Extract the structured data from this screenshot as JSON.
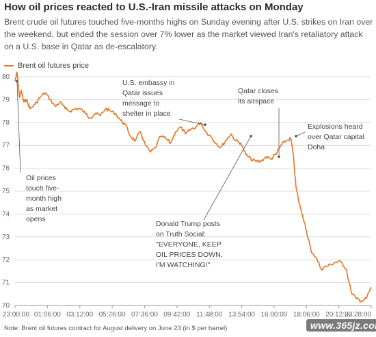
{
  "header": {
    "title": "How oil prices reacted to U.S.-Iran missile attacks on Monday",
    "subtitle": "Brent crude oil futures touched five-months highs on Sunday evening after U.S. strikes on Iran over the weekend, but ended the session over 7% lower as the market viewed Iran's retaliatory attack on a U.S. base in Qatar as de-escalatory."
  },
  "footer": {
    "note": "Note: Brent oil futures contract for August delivery on June 23 (in $ per barrel)",
    "watermark": "www.365jz.com"
  },
  "colors": {
    "line": "#e8731f",
    "grid": "#dcdcdc",
    "text": "#444444"
  },
  "chart_data": {
    "type": "line",
    "title": "How oil prices reacted to U.S.-Iran missile attacks on Monday",
    "xlabel": "",
    "ylabel": "",
    "ylim": [
      70,
      80
    ],
    "yticks": [
      70,
      71,
      72,
      73,
      74,
      75,
      76,
      77,
      78,
      79,
      80
    ],
    "xticks": [
      "23:00:00",
      "01:06:00",
      "03:12:00",
      "05:26:00",
      "07:36:00",
      "09:42:00",
      "11:48:00",
      "13:54:00",
      "16:00:00",
      "18:06:00",
      "20:12:00",
      "22:28:00"
    ],
    "grid": true,
    "legend": "top-left",
    "series": [
      {
        "name": "Brent oil futures price",
        "x": [
          "23:00",
          "23:08",
          "23:12",
          "23:18",
          "23:25",
          "23:35",
          "23:45",
          "00:00",
          "00:20",
          "00:40",
          "01:00",
          "01:20",
          "01:40",
          "02:00",
          "02:20",
          "02:40",
          "03:00",
          "03:20",
          "03:40",
          "04:00",
          "04:20",
          "04:40",
          "05:00",
          "05:20",
          "05:40",
          "06:00",
          "06:20",
          "06:40",
          "07:00",
          "07:20",
          "07:40",
          "08:00",
          "08:20",
          "08:40",
          "09:00",
          "09:20",
          "09:40",
          "10:00",
          "10:20",
          "10:40",
          "11:00",
          "11:20",
          "11:40",
          "12:00",
          "12:20",
          "12:40",
          "13:00",
          "13:20",
          "13:40",
          "14:00",
          "14:20",
          "14:40",
          "15:00",
          "15:20",
          "15:40",
          "16:00",
          "16:20",
          "16:40",
          "17:00",
          "17:20",
          "17:30",
          "17:40",
          "17:50",
          "18:00",
          "18:10",
          "18:20",
          "18:30",
          "18:40",
          "19:00",
          "19:20",
          "19:40",
          "20:00",
          "20:20",
          "20:40",
          "21:00",
          "21:20",
          "21:40",
          "22:00",
          "22:20",
          "22:40"
        ],
        "values": [
          79.8,
          80.2,
          79.7,
          79.1,
          79.4,
          78.9,
          79.0,
          78.6,
          78.8,
          79.1,
          79.3,
          79.0,
          78.7,
          78.9,
          78.6,
          78.5,
          78.6,
          78.6,
          78.4,
          78.2,
          78.4,
          78.3,
          78.6,
          78.5,
          78.4,
          78.1,
          77.9,
          77.4,
          77.2,
          77.6,
          77.0,
          76.7,
          76.9,
          77.4,
          77.3,
          77.1,
          77.6,
          77.8,
          77.5,
          77.7,
          77.8,
          78.0,
          77.6,
          77.4,
          77.1,
          76.9,
          77.2,
          77.5,
          77.2,
          77.1,
          76.6,
          76.4,
          76.3,
          76.3,
          76.5,
          76.4,
          76.6,
          77.0,
          77.2,
          77.3,
          76.5,
          75.2,
          74.6,
          74.2,
          73.8,
          73.3,
          72.9,
          72.4,
          72.1,
          71.6,
          71.7,
          71.8,
          71.9,
          71.9,
          71.6,
          70.6,
          70.3,
          70.2,
          70.3,
          70.8
        ]
      }
    ],
    "annotations": [
      {
        "at": "23:08",
        "lines": [
          "Oil prices",
          "touch five-",
          "month high",
          "as market",
          "opens"
        ]
      },
      {
        "at": "12:00",
        "lines": [
          "U.S. embassy in",
          "Qatar issues",
          "message to",
          "shelter in place"
        ]
      },
      {
        "at": "13:54",
        "lines": [
          "Donald Trump posts",
          "on Truth Social:",
          "\"EVERYONE, KEEP",
          "OIL PRICES DOWN,",
          "I'M WATCHING!\""
        ]
      },
      {
        "at": "16:20",
        "lines": [
          "Qatar closes",
          "its airspace"
        ]
      },
      {
        "at": "17:20",
        "lines": [
          "Explosions heard",
          "over Qatar capital",
          "Doha"
        ]
      }
    ]
  }
}
